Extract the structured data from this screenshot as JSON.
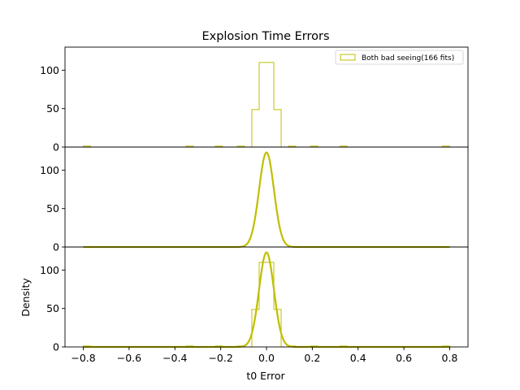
{
  "chart_data": {
    "type": "histogram",
    "title": "Explosion Time Errors",
    "xlabel": "t0 Error",
    "ylabel": "Density",
    "xlim": [
      -0.88,
      0.88
    ],
    "ylim": [
      0,
      130
    ],
    "color": "#bfbf00",
    "xticks": [
      -0.8,
      -0.6,
      -0.4,
      -0.2,
      0.0,
      0.2,
      0.4,
      0.6,
      0.8
    ],
    "xtick_labels": [
      "−0.8",
      "−0.6",
      "−0.4",
      "−0.2",
      "0.0",
      "0.2",
      "0.4",
      "0.6",
      "0.8"
    ],
    "yticks": [
      0,
      50,
      100
    ],
    "legend": {
      "label": "Both bad seeing(166 fits)",
      "position": "upper right"
    },
    "histogram": {
      "bin_width": 0.032,
      "bins": [
        [
          -0.8,
          0.0
        ],
        [
          -0.8,
          1.2
        ],
        [
          -0.768,
          0.0
        ],
        [
          -0.352,
          1.2
        ],
        [
          -0.32,
          0.0
        ],
        [
          -0.224,
          1.2
        ],
        [
          -0.192,
          0.0
        ],
        [
          -0.128,
          1.2
        ],
        [
          -0.096,
          0.0
        ],
        [
          -0.064,
          48.8
        ],
        [
          -0.032,
          110.0
        ],
        [
          0.0,
          110.0
        ],
        [
          0.032,
          48.8
        ],
        [
          0.064,
          0.0
        ],
        [
          0.096,
          1.2
        ],
        [
          0.128,
          0.0
        ],
        [
          0.192,
          1.2
        ],
        [
          0.224,
          0.0
        ],
        [
          0.32,
          1.2
        ],
        [
          0.352,
          0.0
        ],
        [
          0.768,
          1.2
        ],
        [
          0.8,
          0.0
        ]
      ]
    },
    "gaussian": {
      "mean": 0.0,
      "sigma": 0.0325,
      "peak": 123.0,
      "x_range": [
        -0.8,
        0.8
      ]
    },
    "panels": [
      {
        "name": "histogram",
        "series": [
          "histogram"
        ]
      },
      {
        "name": "gaussian-fit",
        "series": [
          "gaussian"
        ]
      },
      {
        "name": "overlay",
        "series": [
          "histogram",
          "gaussian"
        ]
      }
    ]
  }
}
